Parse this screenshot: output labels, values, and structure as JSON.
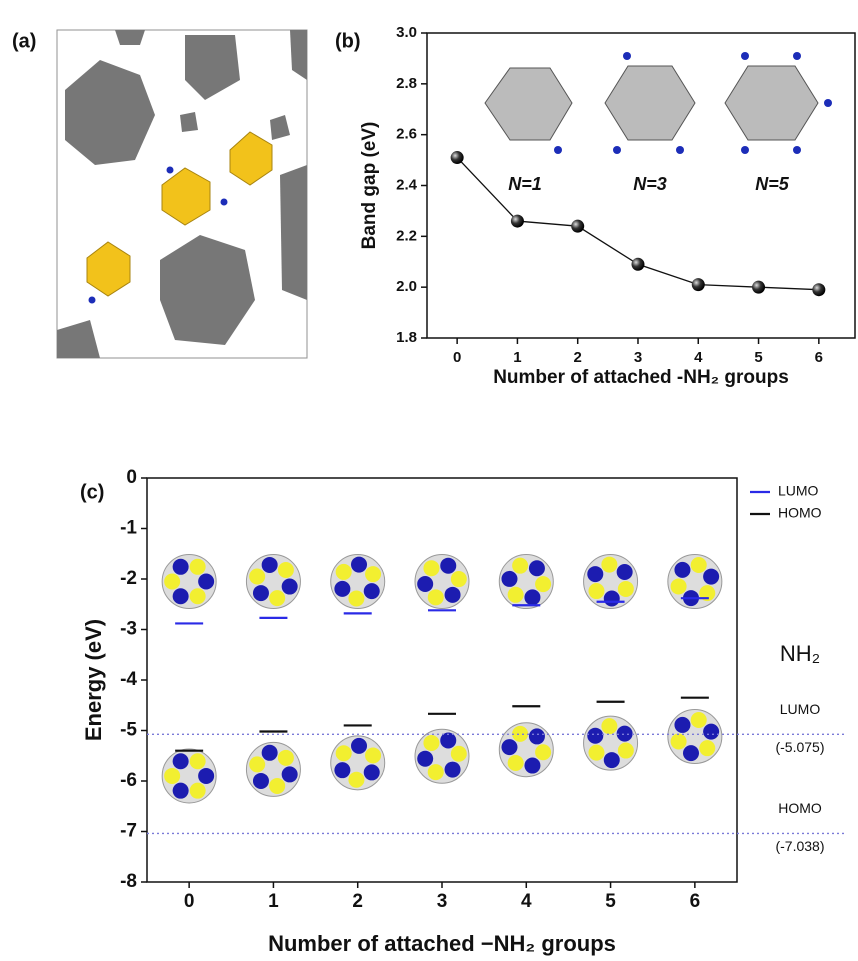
{
  "chart_data": [
    {
      "type": "image",
      "panel_label": "(a)"
    },
    {
      "type": "line",
      "panel_label": "(b)",
      "x": [
        0,
        1,
        2,
        3,
        4,
        5,
        6
      ],
      "series": [
        {
          "color": "#111111",
          "values": [
            2.51,
            2.26,
            2.24,
            2.09,
            2.01,
            2.0,
            1.99
          ]
        }
      ],
      "xlim": [
        -0.5,
        6.6
      ],
      "ylim": [
        1.8,
        3.0
      ],
      "xticks": [
        0,
        1,
        2,
        3,
        4,
        5,
        6
      ],
      "yticks": [
        1.8,
        {
          "value": 2,
          "label": "2.0"
        },
        2.2,
        2.4,
        2.6,
        2.8,
        {
          "value": 3,
          "label": "3.0"
        }
      ],
      "xlabel": "Number of attached -NH₂ groups",
      "ylabel": "Band gap (eV)",
      "annotations": [
        "N=1",
        "N=3",
        "N=5"
      ]
    },
    {
      "type": "level",
      "panel_label": "(c)",
      "x": [
        0,
        1,
        2,
        3,
        4,
        5,
        6
      ],
      "series": [
        {
          "name": "LUMO",
          "color": "#2a2ae6",
          "values": [
            -2.88,
            -2.77,
            -2.68,
            -2.62,
            -2.52,
            -2.45,
            -2.38
          ]
        },
        {
          "name": "HOMO",
          "color": "#111111",
          "values": [
            -5.4,
            -5.02,
            -4.9,
            -4.67,
            -4.52,
            -4.43,
            -4.35
          ]
        }
      ],
      "reference_title": "NH₂",
      "reference_lines": [
        {
          "name": "LUMO",
          "value": -5.075,
          "label": "(-5.075)",
          "color": "#7a7ad8"
        },
        {
          "name": "HOMO",
          "value": -7.038,
          "label": "(-7.038)",
          "color": "#7a7ad8"
        }
      ],
      "xlim": [
        -0.5,
        6.5
      ],
      "ylim": [
        -8,
        0
      ],
      "xticks": [
        0,
        1,
        2,
        3,
        4,
        5,
        6
      ],
      "yticks": [
        -8,
        -7,
        -6,
        -5,
        -4,
        -3,
        -2,
        -1,
        0
      ],
      "xlabel": "Number of attached −NH₂ groups",
      "ylabel": "Energy (eV)"
    }
  ]
}
